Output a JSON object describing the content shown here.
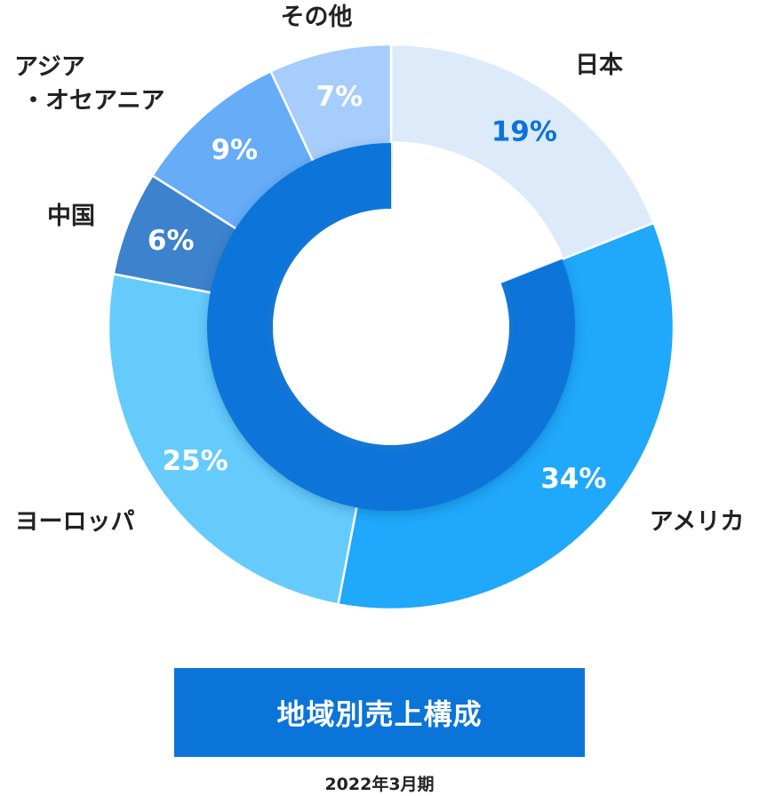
{
  "chart_data": {
    "type": "pie",
    "title": "地域別売上構成",
    "subtitle": "2022年3月期",
    "series": [
      {
        "label": "日本",
        "value": 19,
        "value_label": "19%",
        "color": "#ddeafa",
        "text_color": "#0b74d9"
      },
      {
        "label": "アメリカ",
        "value": 34,
        "value_label": "34%",
        "color": "#20a8fb",
        "text_color": "#ffffff"
      },
      {
        "label": "ヨーロッパ",
        "value": 25,
        "value_label": "25%",
        "color": "#65cbfd",
        "text_color": "#ffffff"
      },
      {
        "label": "中国",
        "value": 6,
        "value_label": "6%",
        "color": "#3d82cc",
        "text_color": "#ffffff"
      },
      {
        "label": "アジア・オセアニア",
        "label_lines": [
          "アジア",
          "・オセアニア"
        ],
        "value": 9,
        "value_label": "9%",
        "color": "#66acf7",
        "text_color": "#ffffff"
      },
      {
        "label": "その他",
        "value": 7,
        "value_label": "7%",
        "color": "#a6cdfb",
        "text_color": "#ffffff"
      }
    ],
    "inner_ring": {
      "value": 81,
      "color": "#0b74d9",
      "remainder_color": "#ffffff"
    }
  }
}
